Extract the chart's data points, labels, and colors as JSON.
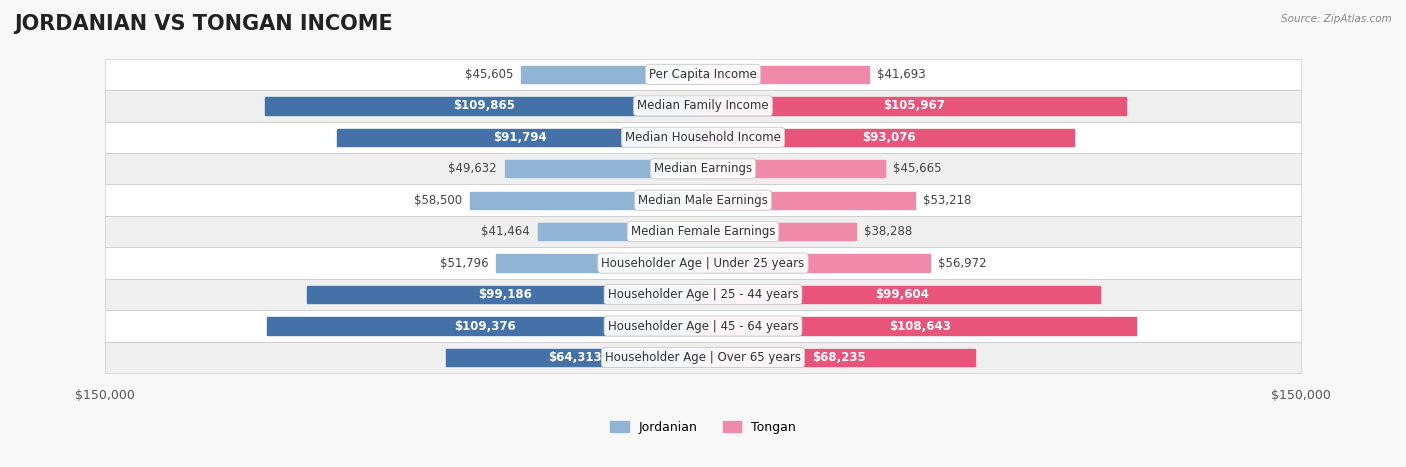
{
  "title": "JORDANIAN VS TONGAN INCOME",
  "source": "Source: ZipAtlas.com",
  "categories": [
    "Per Capita Income",
    "Median Family Income",
    "Median Household Income",
    "Median Earnings",
    "Median Male Earnings",
    "Median Female Earnings",
    "Householder Age | Under 25 years",
    "Householder Age | 25 - 44 years",
    "Householder Age | 45 - 64 years",
    "Householder Age | Over 65 years"
  ],
  "jordanian": [
    45605,
    109865,
    91794,
    49632,
    58500,
    41464,
    51796,
    99186,
    109376,
    64313
  ],
  "tongan": [
    41693,
    105967,
    93076,
    45665,
    53218,
    38288,
    56972,
    99604,
    108643,
    68235
  ],
  "jordanian_labels": [
    "$45,605",
    "$109,865",
    "$91,794",
    "$49,632",
    "$58,500",
    "$41,464",
    "$51,796",
    "$99,186",
    "$109,376",
    "$64,313"
  ],
  "tongan_labels": [
    "$41,693",
    "$105,967",
    "$93,076",
    "$45,665",
    "$53,218",
    "$38,288",
    "$56,972",
    "$99,604",
    "$108,643",
    "$68,235"
  ],
  "jordanian_color": "#92b4d4",
  "tongan_color": "#f08aaa",
  "jordanian_dark_color": "#4472a8",
  "tongan_dark_color": "#e8547a",
  "max_val": 150000,
  "bg_color": "#f5f5f5",
  "row_bg": "#ffffff",
  "row_alt_bg": "#f0f0f0",
  "title_fontsize": 15,
  "label_fontsize": 8.5,
  "axis_label_fontsize": 9,
  "legend_fontsize": 9
}
